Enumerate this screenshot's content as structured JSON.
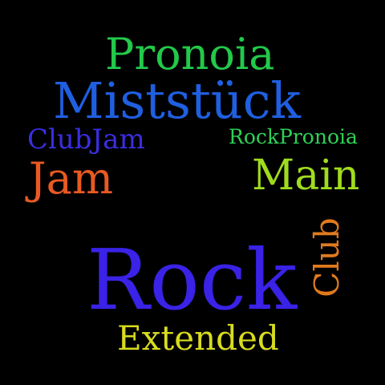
{
  "background": "#000000",
  "words": [
    {
      "key": "pronoia",
      "text": "Pronoia",
      "color": "#22c94a",
      "orientation": "horizontal"
    },
    {
      "key": "miststuck",
      "text": "Miststück",
      "color": "#1f5fe0",
      "orientation": "horizontal"
    },
    {
      "key": "clubjam",
      "text": "ClubJam",
      "color": "#3a2ee0",
      "orientation": "horizontal"
    },
    {
      "key": "rockpronoia",
      "text": "RockPronoia",
      "color": "#2ed158",
      "orientation": "horizontal"
    },
    {
      "key": "jam",
      "text": "Jam",
      "color": "#e85a22",
      "orientation": "horizontal"
    },
    {
      "key": "main",
      "text": "Main",
      "color": "#9fdc1e",
      "orientation": "horizontal"
    },
    {
      "key": "rock",
      "text": "Rock",
      "color": "#3a22e6",
      "orientation": "horizontal"
    },
    {
      "key": "club",
      "text": "Club",
      "color": "#e07a1e",
      "orientation": "vertical"
    },
    {
      "key": "extended",
      "text": "Extended",
      "color": "#d8dc1e",
      "orientation": "horizontal"
    }
  ]
}
